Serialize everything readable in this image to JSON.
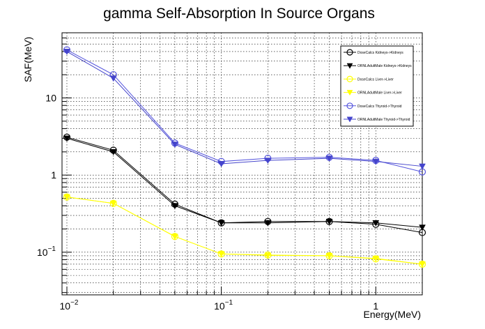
{
  "chart_data": {
    "type": "line",
    "title": "gamma Self-Absorption In Source Organs",
    "xlabel": "Energy(MeV)",
    "ylabel": "SAF(MeV)",
    "x_scale": "log",
    "y_scale": "log",
    "xlim": [
      0.0093,
      2.0
    ],
    "ylim": [
      0.028,
      70
    ],
    "grid": true,
    "legend_position": "top-right",
    "x_ticks": [
      {
        "value": 0.01,
        "base": "10",
        "exp": "−2"
      },
      {
        "value": 0.1,
        "base": "10",
        "exp": "−1"
      },
      {
        "value": 1,
        "base": "1",
        "exp": ""
      }
    ],
    "y_ticks": [
      {
        "value": 0.1,
        "base": "10",
        "exp": "−1"
      },
      {
        "value": 1,
        "base": "1",
        "exp": ""
      },
      {
        "value": 10,
        "base": "10",
        "exp": ""
      }
    ],
    "x": [
      0.01,
      0.02,
      0.05,
      0.1,
      0.2,
      0.5,
      1.0,
      2.0
    ],
    "series": [
      {
        "name": "DoseCalcs Kidneys->Kidneys",
        "color": "#000000",
        "marker": "circle",
        "values": [
          3.1,
          2.1,
          0.42,
          0.24,
          0.25,
          0.25,
          0.23,
          0.18
        ]
      },
      {
        "name": "ORNLAdultMale Kidneys->Kidneys",
        "color": "#000000",
        "marker": "triangle-down",
        "values": [
          3.0,
          2.0,
          0.4,
          0.24,
          0.24,
          0.25,
          0.24,
          0.21
        ]
      },
      {
        "name": "DoseCalcs Liver->Liver",
        "color": "#ffff00",
        "marker": "circle",
        "values": [
          0.52,
          0.43,
          0.16,
          0.095,
          0.092,
          0.09,
          0.082,
          0.07
        ]
      },
      {
        "name": "ORNLAdultMale Liver->Liver",
        "color": "#ffff00",
        "marker": "triangle-down",
        "values": [
          0.52,
          0.43,
          0.16,
          0.095,
          0.091,
          0.09,
          0.083,
          0.07
        ]
      },
      {
        "name": "DoseCalcs Thyroid->Thyroid",
        "color": "#5555dd",
        "marker": "circle",
        "values": [
          42,
          20,
          2.6,
          1.5,
          1.65,
          1.7,
          1.55,
          1.1
        ]
      },
      {
        "name": "ORNLAdultMale Thyroid->Thyroid",
        "color": "#4444cc",
        "marker": "triangle-down",
        "values": [
          40,
          18,
          2.5,
          1.4,
          1.55,
          1.65,
          1.5,
          1.3
        ]
      }
    ]
  }
}
